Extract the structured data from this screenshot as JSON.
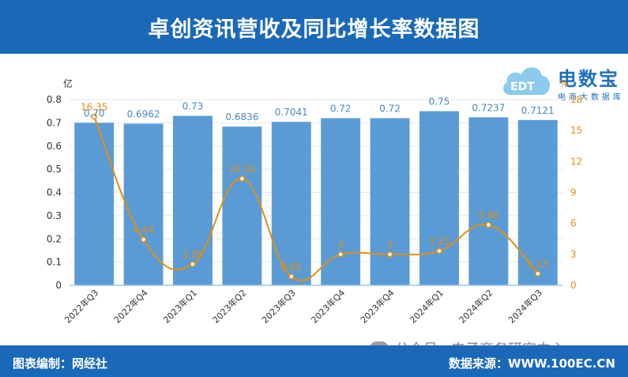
{
  "header": {
    "title": "卓创资讯营收及同比增长率数据图"
  },
  "footer": {
    "left": "图表编制：网经社",
    "right": "数据来源：WWW.100EC.CN"
  },
  "watermark": {
    "text": "公众号 · 电子商务研究中心"
  },
  "logo": {
    "brand": "电数宝",
    "subtitle": "电商大数据库",
    "mark": "EDT"
  },
  "colors": {
    "bar": "#5b9bd5",
    "line": "#e08e14",
    "header": "#1a69b8"
  },
  "chart_data": {
    "type": "bar",
    "categories": [
      "2022年Q3",
      "2022年Q4",
      "2023年Q1",
      "2023年Q2",
      "2023年Q3",
      "2023年Q4",
      "2023年Q4",
      "2024年Q1",
      "2024年Q2",
      "2024年Q3"
    ],
    "y_unit_left": "亿",
    "y_unit_right": "%",
    "ylim_left": [
      0,
      0.8
    ],
    "ylim_right": [
      0,
      18
    ],
    "yticks_left": [
      "0",
      "0.1",
      "0.2",
      "0.3",
      "0.4",
      "0.5",
      "0.6",
      "0.7",
      "0.8"
    ],
    "yticks_right": [
      "0",
      "3",
      "6",
      "9",
      "12",
      "15",
      "18"
    ],
    "grid": true,
    "series": [
      {
        "type": "bar",
        "axis": "left",
        "values": [
          0.7,
          0.6962,
          0.73,
          0.6836,
          0.7041,
          0.72,
          0.72,
          0.75,
          0.7237,
          0.7121
        ],
        "labels": [
          "0.70",
          "0.6962",
          "0.73",
          "0.6836",
          "0.7041",
          "0.72",
          "0.72",
          "0.75",
          "0.7237",
          "0.7121"
        ]
      },
      {
        "type": "line",
        "axis": "right",
        "smooth": true,
        "values": [
          16.35,
          4.44,
          2.05,
          10.34,
          0.85,
          3,
          3,
          3.33,
          5.86,
          1.13
        ],
        "labels": [
          "16.35",
          "4.44",
          "2.05",
          "10.34",
          "0.85",
          "3",
          "3",
          "3.33",
          "5.86",
          "1.13"
        ]
      }
    ]
  }
}
